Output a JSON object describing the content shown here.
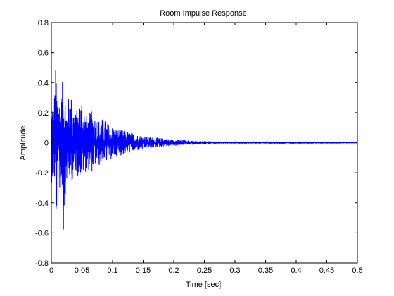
{
  "chart_data": {
    "type": "line",
    "title": "Room Impulse Response",
    "xlabel": "Time [sec]",
    "ylabel": "Amplitude",
    "xlim": [
      0,
      0.5
    ],
    "ylim": [
      -0.8,
      0.8
    ],
    "xticks": [
      0,
      0.05,
      0.1,
      0.15,
      0.2,
      0.25,
      0.3,
      0.35,
      0.4,
      0.45,
      0.5
    ],
    "xtick_labels": [
      "0",
      "0.05",
      "0.1",
      "0.15",
      "0.2",
      "0.25",
      "0.3",
      "0.35",
      "0.4",
      "0.45",
      "0.5"
    ],
    "yticks": [
      -0.8,
      -0.6,
      -0.4,
      -0.2,
      0,
      0.2,
      0.4,
      0.6,
      0.8
    ],
    "ytick_labels": [
      "-0.8",
      "-0.6",
      "-0.4",
      "-0.2",
      "0",
      "0.2",
      "0.4",
      "0.6",
      "0.8"
    ],
    "grid": false,
    "line_color": "#0000ff",
    "series": [
      {
        "x": [
          0.0,
          0.002,
          0.004,
          0.006,
          0.008,
          0.01,
          0.012,
          0.014,
          0.016,
          0.018,
          0.02,
          0.022,
          0.024,
          0.026,
          0.028,
          0.03,
          0.035,
          0.04,
          0.045,
          0.05,
          0.055,
          0.06,
          0.065,
          0.07,
          0.075,
          0.08,
          0.085,
          0.09,
          0.095,
          0.1,
          0.11,
          0.12,
          0.13,
          0.14,
          0.15,
          0.16,
          0.17,
          0.18,
          0.19,
          0.2,
          0.22,
          0.24,
          0.26,
          0.28,
          0.3,
          0.35,
          0.4,
          0.45,
          0.5
        ],
        "upper": [
          0.28,
          0.32,
          0.22,
          0.46,
          0.55,
          0.4,
          0.36,
          0.3,
          0.34,
          0.4,
          0.61,
          0.38,
          0.3,
          0.24,
          0.3,
          0.36,
          0.29,
          0.2,
          0.26,
          0.34,
          0.21,
          0.17,
          0.24,
          0.2,
          0.17,
          0.15,
          0.17,
          0.14,
          0.12,
          0.11,
          0.09,
          0.08,
          0.07,
          0.055,
          0.048,
          0.04,
          0.036,
          0.03,
          0.026,
          0.022,
          0.016,
          0.012,
          0.009,
          0.006,
          0.005,
          0.003,
          0.002,
          0.0015,
          0.001
        ],
        "lower": [
          -0.26,
          -0.28,
          -0.25,
          -0.3,
          -0.56,
          -0.52,
          -0.35,
          -0.4,
          -0.45,
          -0.4,
          -0.67,
          -0.38,
          -0.3,
          -0.25,
          -0.22,
          -0.26,
          -0.25,
          -0.2,
          -0.24,
          -0.22,
          -0.2,
          -0.18,
          -0.21,
          -0.16,
          -0.15,
          -0.16,
          -0.13,
          -0.13,
          -0.12,
          -0.1,
          -0.09,
          -0.08,
          -0.065,
          -0.055,
          -0.046,
          -0.04,
          -0.034,
          -0.029,
          -0.025,
          -0.021,
          -0.016,
          -0.012,
          -0.009,
          -0.006,
          -0.005,
          -0.003,
          -0.002,
          -0.0015,
          -0.001
        ]
      }
    ]
  }
}
